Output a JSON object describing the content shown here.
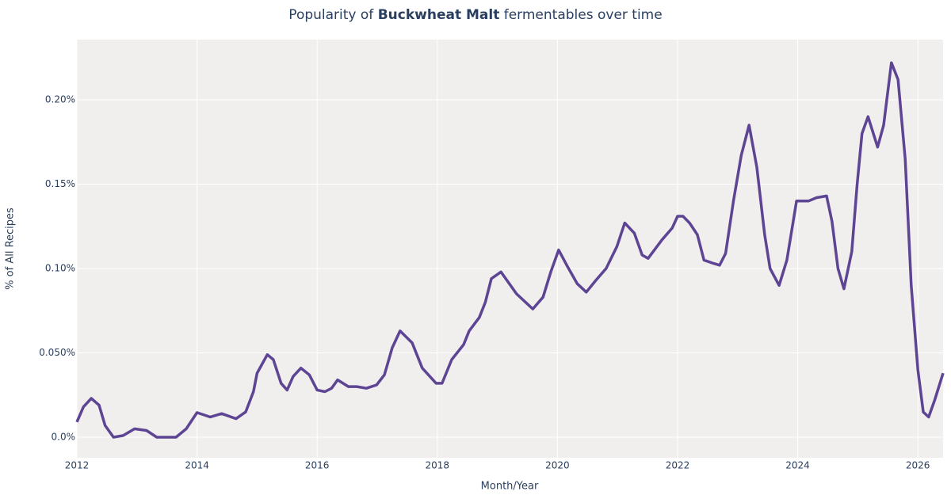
{
  "chart_data": {
    "type": "line",
    "title": {
      "before": "Popularity of",
      "bold": "Buckwheat Malt",
      "after": "fermentables over time"
    },
    "x_label": "Month/Year",
    "y_label": "% of All Recipes",
    "xlim": [
      2012,
      2026.42
    ],
    "xticks": [
      2012,
      2014,
      2016,
      2018,
      2020,
      2022,
      2024,
      2026
    ],
    "ylim": [
      -0.0122,
      0.2357
    ],
    "yticks": [
      {
        "value": 0,
        "label": "0.0%"
      },
      {
        "value": 0.05,
        "label": "0.050%"
      },
      {
        "value": 0.1,
        "label": "0.10%"
      },
      {
        "value": 0.15,
        "label": "0.15%"
      },
      {
        "value": 0.2,
        "label": "0.20%"
      }
    ],
    "grid": true,
    "x": [
      2012.0,
      2012.11,
      2012.24,
      2012.37,
      2012.47,
      2012.61,
      2012.77,
      2012.96,
      2013.16,
      2013.33,
      2013.49,
      2013.65,
      2013.82,
      2014.0,
      2014.22,
      2014.41,
      2014.65,
      2014.81,
      2014.94,
      2015.0,
      2015.17,
      2015.27,
      2015.4,
      2015.5,
      2015.6,
      2015.73,
      2015.87,
      2016.0,
      2016.13,
      2016.24,
      2016.34,
      2016.52,
      2016.66,
      2016.82,
      2016.99,
      2017.12,
      2017.25,
      2017.38,
      2017.58,
      2017.75,
      2017.98,
      2018.08,
      2018.24,
      2018.44,
      2018.53,
      2018.7,
      2018.8,
      2018.9,
      2019.06,
      2019.32,
      2019.59,
      2019.76,
      2019.89,
      2020.02,
      2020.17,
      2020.33,
      2020.48,
      2020.64,
      2020.81,
      2020.99,
      2021.12,
      2021.28,
      2021.41,
      2021.51,
      2021.74,
      2021.91,
      2022.0,
      2022.09,
      2022.2,
      2022.33,
      2022.44,
      2022.6,
      2022.7,
      2022.8,
      2022.93,
      2023.06,
      2023.19,
      2023.32,
      2023.45,
      2023.54,
      2023.69,
      2023.82,
      2023.98,
      2024.18,
      2024.31,
      2024.48,
      2024.57,
      2024.67,
      2024.77,
      2024.9,
      2024.99,
      2025.07,
      2025.17,
      2025.33,
      2025.43,
      2025.56,
      2025.67,
      2025.79,
      2025.89,
      2026.0,
      2026.09,
      2026.18,
      2026.28,
      2026.42
    ],
    "series": [
      {
        "name": "Buckwheat Malt",
        "color": "#5e4594",
        "values": [
          0.009,
          0.018,
          0.023,
          0.019,
          0.007,
          0.0,
          0.001,
          0.005,
          0.004,
          0.0,
          0.0,
          0.0,
          0.005,
          0.0146,
          0.012,
          0.014,
          0.011,
          0.015,
          0.027,
          0.038,
          0.049,
          0.046,
          0.032,
          0.028,
          0.036,
          0.041,
          0.037,
          0.028,
          0.027,
          0.029,
          0.034,
          0.03,
          0.03,
          0.029,
          0.031,
          0.037,
          0.053,
          0.063,
          0.056,
          0.041,
          0.032,
          0.032,
          0.046,
          0.055,
          0.063,
          0.071,
          0.08,
          0.094,
          0.098,
          0.085,
          0.076,
          0.083,
          0.098,
          0.111,
          0.101,
          0.091,
          0.086,
          0.093,
          0.1,
          0.113,
          0.127,
          0.121,
          0.108,
          0.106,
          0.117,
          0.124,
          0.131,
          0.131,
          0.127,
          0.12,
          0.105,
          0.103,
          0.102,
          0.109,
          0.14,
          0.167,
          0.185,
          0.16,
          0.12,
          0.1,
          0.09,
          0.105,
          0.14,
          0.14,
          0.142,
          0.143,
          0.128,
          0.1,
          0.088,
          0.11,
          0.15,
          0.18,
          0.19,
          0.172,
          0.185,
          0.222,
          0.212,
          0.165,
          0.09,
          0.04,
          0.015,
          0.012,
          0.022,
          0.038
        ]
      }
    ]
  }
}
